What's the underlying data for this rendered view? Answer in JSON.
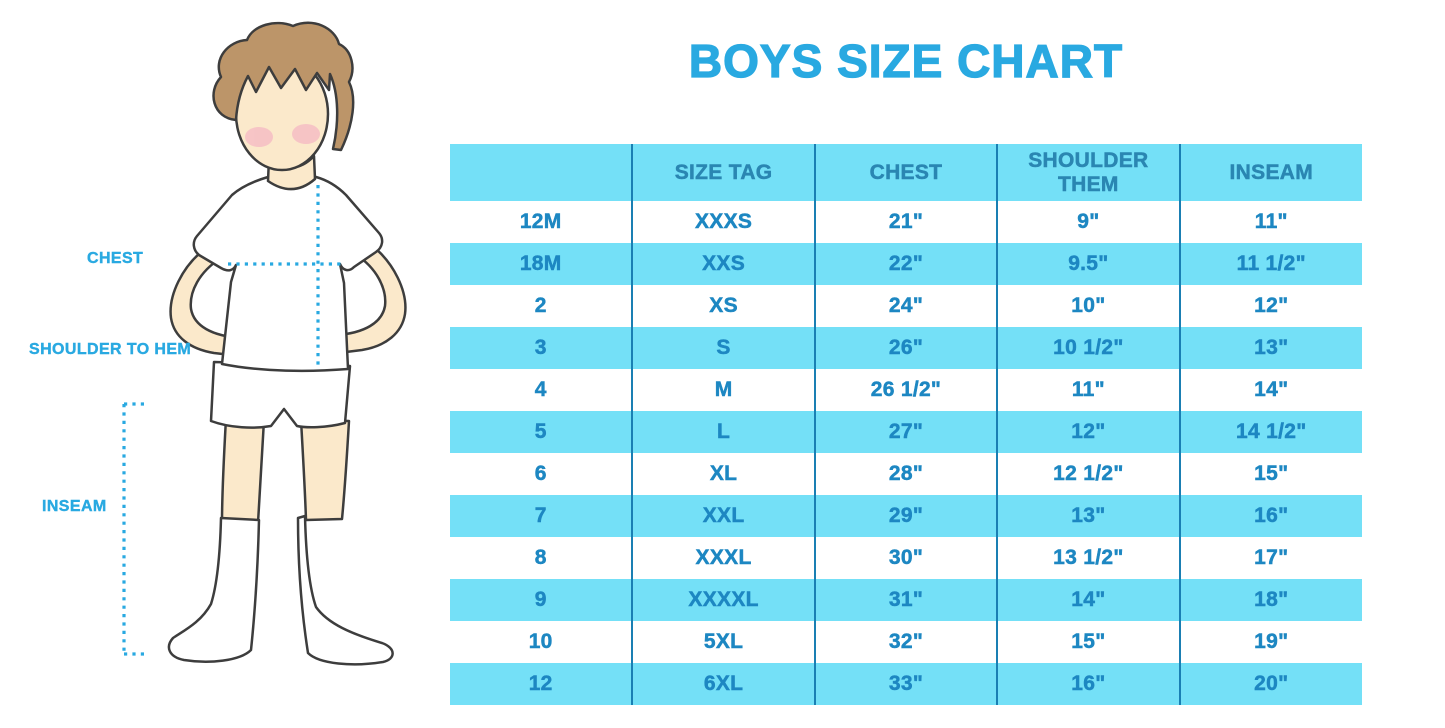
{
  "title": "BOYS SIZE CHART",
  "figure_labels": {
    "chest": "CHEST",
    "shoulder_to_hem": "SHOULDER TO HEM",
    "inseam": "INSEAM"
  },
  "colors": {
    "accent_blue": "#29A9E1",
    "stripe_cyan": "#74E0F7",
    "divider_blue": "#1A7FB3",
    "cell_text_blue": "#1D87C2",
    "header_text_blue": "#2A86B2",
    "hair_brown": "#BC9569",
    "skin_tone": "#FBE9CB",
    "cheek_pink": "#F5B8C4"
  },
  "chart_data": {
    "type": "table",
    "title": "BOYS SIZE CHART",
    "headers": [
      "",
      "SIZE TAG",
      "CHEST",
      "SHOULDER THEM",
      "INSEAM"
    ],
    "rows": [
      [
        "12M",
        "XXXS",
        "21\"",
        "9\"",
        "11\""
      ],
      [
        "18M",
        "XXS",
        "22\"",
        "9.5\"",
        "11 1/2\""
      ],
      [
        "2",
        "XS",
        "24\"",
        "10\"",
        "12\""
      ],
      [
        "3",
        "S",
        "26\"",
        "10 1/2\"",
        "13\""
      ],
      [
        "4",
        "M",
        "26 1/2\"",
        "11\"",
        "14\""
      ],
      [
        "5",
        "L",
        "27\"",
        "12\"",
        "14 1/2\""
      ],
      [
        "6",
        "XL",
        "28\"",
        "12 1/2\"",
        "15\""
      ],
      [
        "7",
        "XXL",
        "29\"",
        "13\"",
        "16\""
      ],
      [
        "8",
        "XXXL",
        "30\"",
        "13 1/2\"",
        "17\""
      ],
      [
        "9",
        "XXXXL",
        "31\"",
        "14\"",
        "18\""
      ],
      [
        "10",
        "5XL",
        "32\"",
        "15\"",
        "19\""
      ],
      [
        "12",
        "6XL",
        "33\"",
        "16\"",
        "20\""
      ]
    ]
  }
}
